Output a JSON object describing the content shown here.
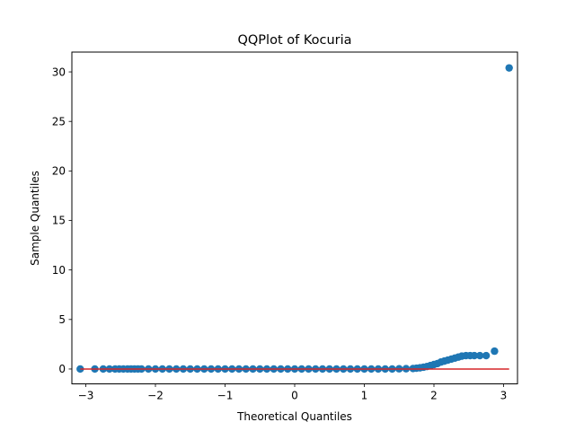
{
  "chart_data": {
    "type": "scatter",
    "title": "QQPlot of Kocuria",
    "xlabel": "Theoretical Quantiles",
    "ylabel": "Sample Quantiles",
    "xlim": [
      -3.2,
      3.2
    ],
    "ylim": [
      -1.5,
      32
    ],
    "xticks": [
      -3,
      -2,
      -1,
      0,
      1,
      2,
      3
    ],
    "xtick_labels": [
      "−3",
      "−2",
      "−1",
      "0",
      "1",
      "2",
      "3"
    ],
    "yticks": [
      0,
      5,
      10,
      15,
      20,
      25,
      30
    ],
    "ytick_labels": [
      "0",
      "5",
      "10",
      "15",
      "20",
      "25",
      "30"
    ],
    "grid": false,
    "colors": {
      "points": "#1f77b4",
      "reference_line": "#d62728"
    },
    "reference_line": {
      "x": [
        -3.08,
        3.08
      ],
      "y": [
        0,
        0
      ]
    },
    "points": {
      "x": [
        -3.08,
        -2.87,
        -2.75,
        -2.66,
        -2.58,
        -2.52,
        -2.46,
        -2.4,
        -2.35,
        -2.3,
        -2.25,
        -2.2,
        -2.1,
        -2.0,
        -1.9,
        -1.8,
        -1.7,
        -1.6,
        -1.5,
        -1.4,
        -1.3,
        -1.2,
        -1.1,
        -1.0,
        -0.9,
        -0.8,
        -0.7,
        -0.6,
        -0.5,
        -0.4,
        -0.3,
        -0.2,
        -0.1,
        0.0,
        0.1,
        0.2,
        0.3,
        0.4,
        0.5,
        0.6,
        0.7,
        0.8,
        0.9,
        1.0,
        1.1,
        1.2,
        1.3,
        1.4,
        1.5,
        1.6,
        1.7,
        1.75,
        1.8,
        1.85,
        1.9,
        1.95,
        2.0,
        2.05,
        2.1,
        2.15,
        2.2,
        2.25,
        2.3,
        2.35,
        2.4,
        2.46,
        2.52,
        2.58,
        2.66,
        2.75,
        2.87,
        3.08
      ],
      "y": [
        0.0,
        0.0,
        0.0,
        0.0,
        0.0,
        0.0,
        0.0,
        0.0,
        0.0,
        0.0,
        0.0,
        0.0,
        0.0,
        0.0,
        0.0,
        0.0,
        0.0,
        0.0,
        0.0,
        0.0,
        0.0,
        0.0,
        0.0,
        0.0,
        0.0,
        0.0,
        0.0,
        0.0,
        0.0,
        0.0,
        0.0,
        0.0,
        0.0,
        0.0,
        0.0,
        0.0,
        0.0,
        0.0,
        0.0,
        0.0,
        0.0,
        0.0,
        0.0,
        0.0,
        0.0,
        0.0,
        0.0,
        0.0,
        0.02,
        0.03,
        0.05,
        0.08,
        0.12,
        0.18,
        0.25,
        0.35,
        0.45,
        0.55,
        0.7,
        0.8,
        0.9,
        1.0,
        1.1,
        1.2,
        1.3,
        1.35,
        1.35,
        1.35,
        1.35,
        1.35,
        1.8,
        30.4
      ]
    }
  }
}
